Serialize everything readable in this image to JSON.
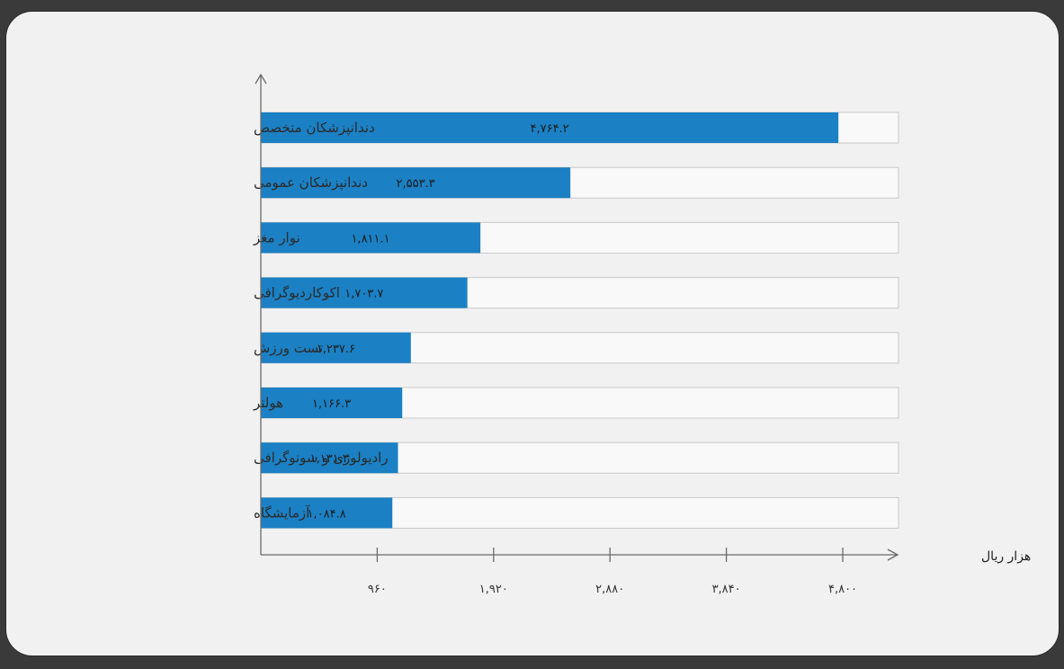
{
  "chart_data": {
    "type": "bar",
    "orientation": "horizontal",
    "categories": [
      "دندانپزشکان متخصص",
      "دندانپزشکان عمومی",
      "نوار مغز",
      "اکوکاردیوگرافی",
      "تست ورزش",
      "هولتر",
      "رادیولوژی و سونوگرافی",
      "آزمایشگاه"
    ],
    "values": [
      4764.2,
      2553.3,
      1811.1,
      1703.7,
      1237.6,
      1166.3,
      1131.3,
      1084.8
    ],
    "value_labels": [
      "۴,۷۶۴.۲",
      "۲,۵۵۳.۳",
      "۱,۸۱۱.۱",
      "۱,۷۰۳.۷",
      "۱,۲۳۷.۶",
      "۱,۱۶۶.۳",
      "۱,۱۳۱.۳",
      "۱,۰۸۴.۸"
    ],
    "x_ticks": [
      960,
      1920,
      2880,
      3840,
      4800
    ],
    "x_tick_labels": [
      "۹۶۰",
      "۱,۹۲۰",
      "۲,۸۸۰",
      "۳,۸۴۰",
      "۴,۸۰۰"
    ],
    "xlim": [
      0,
      5250
    ],
    "xlabel": "هزار ریال",
    "ylabel": "",
    "title": "",
    "grid": false,
    "colors": {
      "bar": "#1b80c4",
      "track": "#f9f9f9",
      "track_border": "#c9c9c9",
      "axis": "#6a6a6a"
    }
  }
}
